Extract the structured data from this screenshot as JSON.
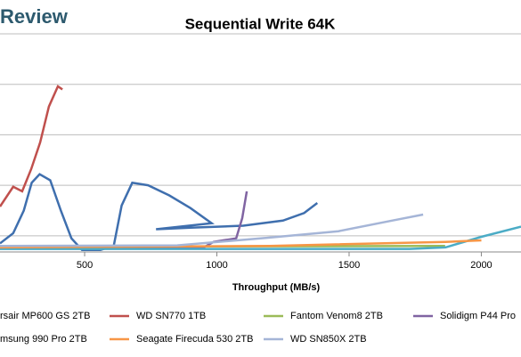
{
  "logo": "Review",
  "chart_data": {
    "type": "line",
    "title": "Sequential Write 64K",
    "x_label": "Throughput (MB/s)",
    "xlim": [
      180,
      2150
    ],
    "xticks": [
      500,
      1000,
      1500,
      2000
    ],
    "ylim": [
      0.68,
      5.67
    ],
    "yticks": [
      1,
      2,
      3,
      4,
      5
    ],
    "grid": true,
    "series": [
      {
        "name": "rsair MP600 GS 2TB",
        "color": "#3f6fae",
        "x": [
          180,
          230,
          270,
          300,
          330,
          370,
          410,
          450,
          490,
          560,
          610,
          640,
          680,
          740,
          820,
          900,
          980,
          770,
          900,
          1100,
          1250,
          1330,
          1380
        ],
        "values": [
          0.85,
          1.05,
          1.5,
          2.05,
          2.22,
          2.1,
          1.5,
          0.95,
          0.72,
          0.72,
          0.8,
          1.6,
          2.05,
          2.0,
          1.8,
          1.55,
          1.25,
          1.13,
          1.16,
          1.2,
          1.3,
          1.45,
          1.65
        ]
      },
      {
        "name": "WD SN770 1TB",
        "color": "#c0504d",
        "x": [
          180,
          230,
          264,
          298,
          332,
          365,
          399,
          416
        ],
        "values": [
          1.58,
          1.97,
          1.88,
          2.32,
          2.85,
          3.56,
          3.96,
          3.9
        ]
      },
      {
        "name": "Fantom Venom8 2TB",
        "color": "#9bbb59",
        "x": [
          180,
          1000,
          1863
        ],
        "values": [
          0.79,
          0.79,
          0.8
        ]
      },
      {
        "name": "Solidigm P44 Pro",
        "color": "#8064a2",
        "x": [
          180,
          950,
          988,
          1073,
          1096,
          1113
        ],
        "values": [
          0.76,
          0.77,
          0.88,
          0.95,
          1.35,
          1.88
        ]
      },
      {
        "name": "msung 990 Pro 2TB",
        "color": "#4bacc6",
        "x": [
          180,
          1729,
          1864,
          2000,
          2150
        ],
        "values": [
          0.74,
          0.74,
          0.77,
          0.98,
          1.18
        ]
      },
      {
        "name": "Seagate Firecuda 530 2TB",
        "color": "#f79646",
        "x": [
          180,
          1200,
          1863,
          2000
        ],
        "values": [
          0.77,
          0.8,
          0.88,
          0.91
        ]
      },
      {
        "name": "WD SN850X 2TB",
        "color": "#a5b5d7",
        "x": [
          180,
          850,
          1190,
          1460,
          1662,
          1780
        ],
        "values": [
          0.8,
          0.81,
          0.96,
          1.09,
          1.3,
          1.42
        ]
      }
    ]
  }
}
